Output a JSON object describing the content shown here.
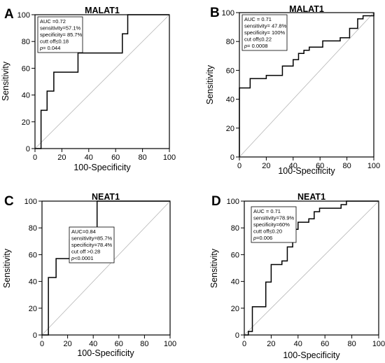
{
  "chart_data": [
    {
      "type": "line",
      "panel": "A",
      "title": "MALAT1",
      "xlabel": "100-Specificity",
      "ylabel": "Sensitivity",
      "xlim": [
        0,
        100
      ],
      "ylim": [
        0,
        100
      ],
      "xticks": [
        0,
        20,
        40,
        60,
        80,
        100
      ],
      "yticks": [
        0,
        20,
        40,
        60,
        80,
        100
      ],
      "grid": false,
      "diagonal_reference": true,
      "stats": [
        "AUC =0.72",
        "sensitivity=57.1%",
        "specificity= 85.7%",
        "cutt off≤0.18",
        "p= 0.044"
      ],
      "x": [
        0,
        0,
        4.5,
        4.5,
        9,
        9,
        14,
        14,
        32,
        32,
        65,
        65,
        69,
        69,
        100
      ],
      "y": [
        0,
        0,
        0,
        28.6,
        28.6,
        42.9,
        42.9,
        57.1,
        57.1,
        71.4,
        71.4,
        85.7,
        85.7,
        100,
        100
      ]
    },
    {
      "type": "line",
      "panel": "B",
      "title": "MALAT1",
      "xlabel": "100-Specificity",
      "ylabel": "Sensitivity",
      "xlim": [
        0,
        100
      ],
      "ylim": [
        0,
        100
      ],
      "xticks": [
        0,
        20,
        40,
        60,
        80,
        100
      ],
      "yticks": [
        0,
        20,
        40,
        60,
        80,
        100
      ],
      "grid": false,
      "diagonal_reference": true,
      "stats": [
        "AUC = 0.71",
        "sensitivity= 47.8%",
        "specificity= 100%",
        "cut off≤0.22",
        "p= 0.0008"
      ],
      "x": [
        0,
        0,
        8,
        8,
        20,
        20,
        32,
        32,
        40,
        40,
        44,
        44,
        48,
        48,
        52,
        52,
        62,
        62,
        75,
        75,
        82,
        82,
        88,
        88,
        92,
        92,
        100,
        100
      ],
      "y": [
        0,
        47.8,
        47.8,
        54.3,
        54.3,
        56.5,
        56.5,
        63,
        63,
        67.4,
        67.4,
        71.7,
        71.7,
        73.9,
        73.9,
        76.1,
        76.1,
        80.4,
        80.4,
        82.6,
        82.6,
        89.1,
        89.1,
        95.7,
        95.7,
        97.8,
        97.8,
        100
      ]
    },
    {
      "type": "line",
      "panel": "C",
      "title": "NEAT1",
      "xlabel": "100-Specificity",
      "ylabel": "Sensitivity",
      "xlim": [
        0,
        100
      ],
      "ylim": [
        0,
        100
      ],
      "xticks": [
        0,
        20,
        40,
        60,
        80,
        100
      ],
      "yticks": [
        0,
        20,
        40,
        60,
        80,
        100
      ],
      "grid": false,
      "diagonal_reference": true,
      "stats": [
        "AUC=0.84",
        "sensitivity=85.7%",
        "specificity=78.4%",
        "cut off >0.28",
        "p<0.0001"
      ],
      "x": [
        0,
        0,
        5,
        5,
        11,
        11,
        21.6,
        21.6,
        43,
        43,
        100
      ],
      "y": [
        0,
        0,
        0,
        42.9,
        42.9,
        57.1,
        57.1,
        71.4,
        71.4,
        100,
        100
      ]
    },
    {
      "type": "line",
      "panel": "D",
      "title": "NEAT1",
      "xlabel": "100-Specificity",
      "ylabel": "Sensitivity",
      "xlim": [
        0,
        100
      ],
      "ylim": [
        0,
        100
      ],
      "xticks": [
        0,
        20,
        40,
        60,
        80,
        100
      ],
      "yticks": [
        0,
        20,
        40,
        60,
        80,
        100
      ],
      "grid": false,
      "diagonal_reference": true,
      "stats": [
        "AUC = 0.71",
        "sensitivity=78.9%",
        "specificity=60%",
        "cutt off≤0.20",
        "p=0.006"
      ],
      "x": [
        0,
        3,
        3,
        6,
        6,
        16,
        16,
        20,
        20,
        28,
        28,
        32,
        32,
        36,
        36,
        40,
        40,
        48,
        48,
        52,
        52,
        56,
        56,
        72,
        72,
        76,
        76,
        80,
        80,
        100
      ],
      "y": [
        0,
        0,
        2.6,
        2.6,
        21.1,
        21.1,
        39.5,
        39.5,
        52.6,
        52.6,
        55.3,
        55.3,
        65.8,
        65.8,
        78.9,
        78.9,
        84.2,
        84.2,
        86.8,
        86.8,
        92.1,
        92.1,
        94.7,
        94.7,
        97.4,
        97.4,
        100,
        100,
        100,
        100
      ]
    }
  ]
}
